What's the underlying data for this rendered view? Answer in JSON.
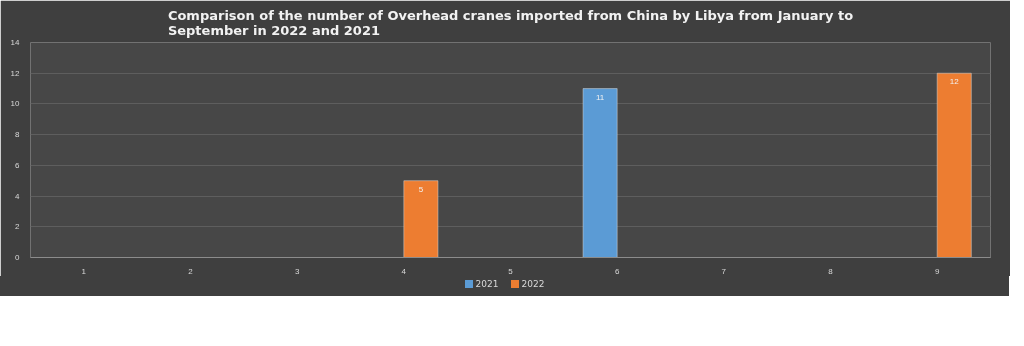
{
  "chart_data": {
    "type": "bar",
    "title": "Comparison of the number of Overhead cranes imported from China by Libya from January to September in 2022 and 2021",
    "categories": [
      "1",
      "2",
      "3",
      "4",
      "5",
      "6",
      "7",
      "8",
      "9"
    ],
    "series": [
      {
        "name": "2021",
        "color": "#5b9bd5",
        "values": [
          null,
          null,
          null,
          null,
          null,
          11,
          null,
          null,
          null
        ]
      },
      {
        "name": "2022",
        "color": "#ed7d31",
        "values": [
          null,
          null,
          null,
          5,
          null,
          null,
          null,
          null,
          12
        ]
      }
    ],
    "ylim": [
      0,
      14
    ],
    "yticks": [
      0,
      2,
      4,
      6,
      8,
      10,
      12,
      14
    ],
    "grid": "y",
    "legend": "bottom",
    "data_labels": true
  }
}
